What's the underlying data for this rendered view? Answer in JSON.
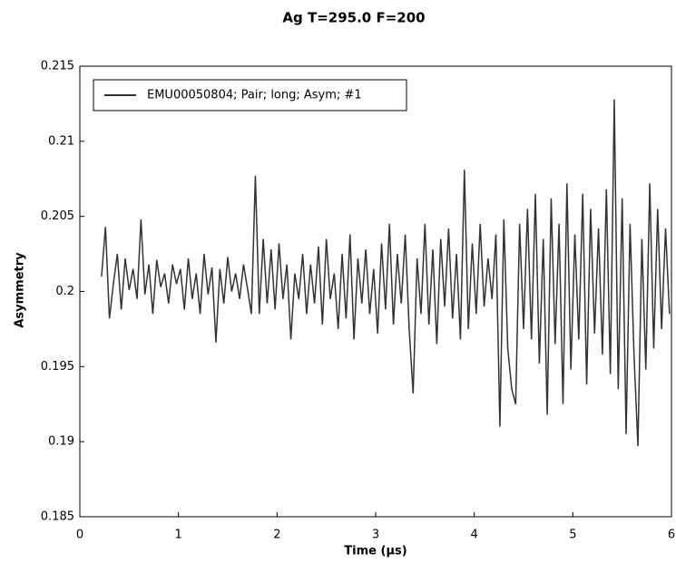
{
  "chart_data": {
    "type": "line",
    "title": "Ag T=295.0 F=200",
    "x_label": "Time (µs)",
    "y_label": "Asymmetry",
    "xlim": [
      0,
      6
    ],
    "xticks": [
      0,
      1,
      2,
      3,
      4,
      5,
      6
    ],
    "ylim": [
      0.185,
      0.215
    ],
    "yticks": [
      0.185,
      0.19,
      0.195,
      0.2,
      0.205,
      0.21,
      0.215
    ],
    "legend": "upper left",
    "x": [
      0.22,
      0.26,
      0.3,
      0.34,
      0.38,
      0.42,
      0.46,
      0.5,
      0.54,
      0.58,
      0.62,
      0.66,
      0.7,
      0.74,
      0.78,
      0.82,
      0.86,
      0.9,
      0.94,
      0.98,
      1.02,
      1.06,
      1.1,
      1.14,
      1.18,
      1.22,
      1.26,
      1.3,
      1.34,
      1.38,
      1.42,
      1.46,
      1.5,
      1.54,
      1.58,
      1.62,
      1.66,
      1.7,
      1.74,
      1.78,
      1.82,
      1.86,
      1.9,
      1.94,
      1.98,
      2.02,
      2.06,
      2.1,
      2.14,
      2.18,
      2.22,
      2.26,
      2.3,
      2.34,
      2.38,
      2.42,
      2.46,
      2.5,
      2.54,
      2.58,
      2.62,
      2.66,
      2.7,
      2.74,
      2.78,
      2.82,
      2.86,
      2.9,
      2.94,
      2.98,
      3.02,
      3.06,
      3.1,
      3.14,
      3.18,
      3.22,
      3.26,
      3.3,
      3.34,
      3.38,
      3.42,
      3.46,
      3.5,
      3.54,
      3.58,
      3.62,
      3.66,
      3.7,
      3.74,
      3.78,
      3.82,
      3.86,
      3.9,
      3.94,
      3.98,
      4.02,
      4.06,
      4.1,
      4.14,
      4.18,
      4.22,
      4.26,
      4.3,
      4.34,
      4.38,
      4.42,
      4.46,
      4.5,
      4.54,
      4.58,
      4.62,
      4.66,
      4.7,
      4.74,
      4.78,
      4.82,
      4.86,
      4.9,
      4.94,
      4.98,
      5.02,
      5.06,
      5.1,
      5.14,
      5.18,
      5.22,
      5.26,
      5.3,
      5.34,
      5.38,
      5.42,
      5.46,
      5.5,
      5.54,
      5.58,
      5.62,
      5.66,
      5.7,
      5.74,
      5.78,
      5.82,
      5.86,
      5.9,
      5.94,
      5.98
    ],
    "series": [
      {
        "name": "EMU00050804; Pair; long; Asym; #1",
        "color": "#333333",
        "values": [
          0.201,
          0.2043,
          0.1982,
          0.2005,
          0.2025,
          0.1988,
          0.2022,
          0.2001,
          0.2015,
          0.1995,
          0.2048,
          0.1998,
          0.2018,
          0.1985,
          0.2021,
          0.2003,
          0.2012,
          0.1992,
          0.2018,
          0.2005,
          0.2015,
          0.1988,
          0.2022,
          0.1995,
          0.2012,
          0.1985,
          0.2025,
          0.1998,
          0.2016,
          0.1966,
          0.2015,
          0.1992,
          0.2023,
          0.2,
          0.2012,
          0.1995,
          0.2018,
          0.2002,
          0.1985,
          0.2077,
          0.1985,
          0.2035,
          0.1992,
          0.2028,
          0.1988,
          0.2032,
          0.1995,
          0.2018,
          0.1968,
          0.2012,
          0.1995,
          0.2025,
          0.1985,
          0.2018,
          0.1992,
          0.203,
          0.1978,
          0.2035,
          0.1995,
          0.2012,
          0.1975,
          0.2025,
          0.1982,
          0.2038,
          0.1968,
          0.2022,
          0.1992,
          0.2028,
          0.1985,
          0.2015,
          0.1972,
          0.2032,
          0.1988,
          0.2045,
          0.1978,
          0.2025,
          0.1992,
          0.2038,
          0.1975,
          0.1932,
          0.2022,
          0.1985,
          0.2045,
          0.1978,
          0.2028,
          0.1965,
          0.2035,
          0.199,
          0.2042,
          0.1982,
          0.2025,
          0.1968,
          0.2081,
          0.1975,
          0.2032,
          0.1985,
          0.2045,
          0.199,
          0.2022,
          0.1995,
          0.2038,
          0.191,
          0.2048,
          0.1962,
          0.1935,
          0.1925,
          0.2045,
          0.1975,
          0.2055,
          0.1968,
          0.2065,
          0.1952,
          0.2035,
          0.1918,
          0.2062,
          0.1965,
          0.2045,
          0.1925,
          0.2072,
          0.1948,
          0.2038,
          0.1968,
          0.2065,
          0.1938,
          0.2055,
          0.1972,
          0.2042,
          0.1958,
          0.2068,
          0.1945,
          0.2128,
          0.1935,
          0.2062,
          0.1905,
          0.2045,
          0.1958,
          0.1897,
          0.2035,
          0.1948,
          0.2072,
          0.1962,
          0.2055,
          0.1975,
          0.2042,
          0.1985
        ]
      }
    ]
  }
}
